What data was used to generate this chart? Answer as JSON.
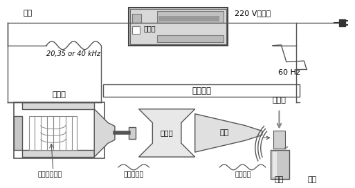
{
  "bg_color": "#ffffff",
  "line_color": "#555555",
  "dark_color": "#333333",
  "gray1": "#e8e8e8",
  "gray2": "#cccccc",
  "gray3": "#aaaaaa",
  "labels": {
    "dianneng": "电能",
    "kongzhixiang": "控制箱",
    "voltage": "220 V，单相",
    "freq_low": "20,35 or 40 kHz",
    "freq_high": "60 Hz",
    "chuangan": "传感系统",
    "huannengqi": "换能器",
    "bianfuqi": "变幅器",
    "hangtou": "焊头",
    "hanzuo": "焊座",
    "hanjian": "焊件",
    "piezo": "压电陶瓷晶体",
    "jixie": "机械振动能",
    "kuoda": "扩大振幅",
    "xiang_yl": "箱压力"
  },
  "figsize": [
    5.13,
    2.72
  ],
  "dpi": 100
}
